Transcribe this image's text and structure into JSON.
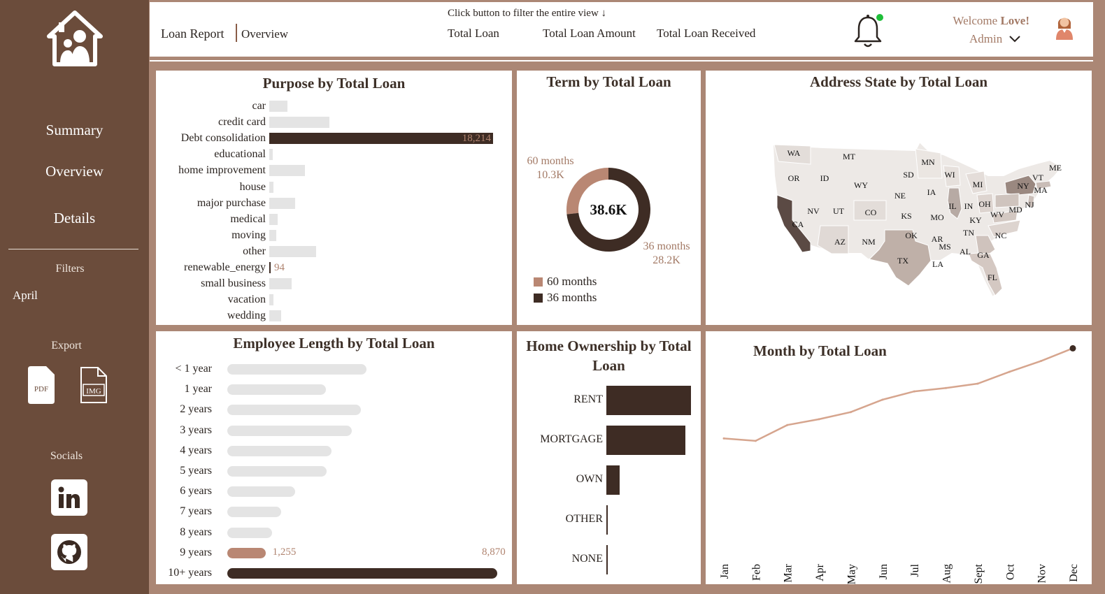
{
  "sidebar": {
    "nav": [
      {
        "label": "Summary"
      },
      {
        "label": "Overview"
      },
      {
        "label": "Details"
      }
    ],
    "filters_heading": "Filters",
    "filter_value": "April",
    "export_heading": "Export",
    "export": {
      "pdf_label": "PDF",
      "img_label": "IMG"
    },
    "socials_heading": "Socials",
    "socials": [
      {
        "icon": "linkedin-icon"
      },
      {
        "icon": "github-icon"
      }
    ]
  },
  "header": {
    "report": "Loan Report",
    "page": "Overview",
    "filter_hint": "Click button to filter the entire view ↓",
    "filter_buttons": [
      "Total Loan",
      "Total Loan Amount",
      "Total Loan Received"
    ],
    "welcome_prefix": "Welcome ",
    "welcome_name": "Love!",
    "user": "Admin"
  },
  "colors": {
    "sidebar": "#6b4c3b",
    "page": "#ab8775",
    "dark": "#3e2c24",
    "accent": "#b98773",
    "light_bar": "#e4e4e4",
    "notification": "#1fbf3a"
  },
  "chart_data": [
    {
      "id": "purpose",
      "type": "bar",
      "orientation": "horizontal",
      "title": "Purpose by Total Loan",
      "categories": [
        "car",
        "credit card",
        "Debt consolidation",
        "educational",
        "home improvement",
        "house",
        "major purchase",
        "medical",
        "moving",
        "other",
        "renewable_energy",
        "small business",
        "vacation",
        "wedding"
      ],
      "values": [
        1500,
        4900,
        18214,
        300,
        2900,
        350,
        2100,
        670,
        560,
        3800,
        94,
        1800,
        350,
        950
      ],
      "labels": {
        "Debt consolidation": "18,214",
        "renewable_energy": "94"
      }
    },
    {
      "id": "term",
      "type": "pie",
      "style": "donut",
      "title": "Term by Total Loan",
      "center_label": "38.6K",
      "slices": [
        {
          "name": "60 months",
          "value": 10.3,
          "label": "10.3K",
          "color": "#b98773"
        },
        {
          "name": "36 months",
          "value": 28.2,
          "label": "28.2K",
          "color": "#3e2c24"
        }
      ],
      "legend": "bottom-left"
    },
    {
      "id": "state",
      "type": "heatmap",
      "subtype": "filled-map",
      "title": "Address State by Total Loan",
      "regions": [
        "WA",
        "MT",
        "MN",
        "ME",
        "OR",
        "ID",
        "WY",
        "SD",
        "WI",
        "MI",
        "NY",
        "VT",
        "MA",
        "NE",
        "IA",
        "NV",
        "UT",
        "CO",
        "IL",
        "IN",
        "OH",
        "MD",
        "NJ",
        "CA",
        "KS",
        "MO",
        "KY",
        "WV",
        "AZ",
        "NM",
        "OK",
        "AR",
        "TN",
        "NC",
        "MS",
        "AL",
        "GA",
        "TX",
        "LA",
        "FL"
      ]
    },
    {
      "id": "employee",
      "type": "bar",
      "orientation": "horizontal",
      "title": "Employee Length by Total Loan",
      "categories": [
        "< 1 year",
        "1 year",
        "2 years",
        "3 years",
        "4 years",
        "5 years",
        "6 years",
        "7 years",
        "8 years",
        "9 years",
        "10+ years"
      ],
      "values": [
        4583,
        3229,
        4382,
        4088,
        3428,
        3273,
        2228,
        1772,
        1479,
        1255,
        8870
      ],
      "highlight": {
        "9 years": "#b98773",
        "10+ years": "#3e2c24"
      },
      "labels": {
        "9 years": "1,255",
        "10+ years": "8,870"
      }
    },
    {
      "id": "home",
      "type": "bar",
      "orientation": "horizontal",
      "title": "Home Ownership by Total Loan",
      "categories": [
        "RENT",
        "MORTGAGE",
        "OWN",
        "OTHER",
        "NONE"
      ],
      "values": [
        18439,
        17198,
        2838,
        98,
        3
      ]
    },
    {
      "id": "month",
      "type": "line",
      "title": "Month by Total Loan",
      "categories": [
        "Jan",
        "Feb",
        "Mar",
        "Apr",
        "May",
        "Jun",
        "Jul",
        "Aug",
        "Sept",
        "Oct",
        "Nov",
        "Dec"
      ],
      "values": [
        2332,
        2279,
        2627,
        2755,
        2911,
        3184,
        3366,
        3441,
        3536,
        3796,
        4035,
        4314
      ],
      "grid": false
    }
  ]
}
